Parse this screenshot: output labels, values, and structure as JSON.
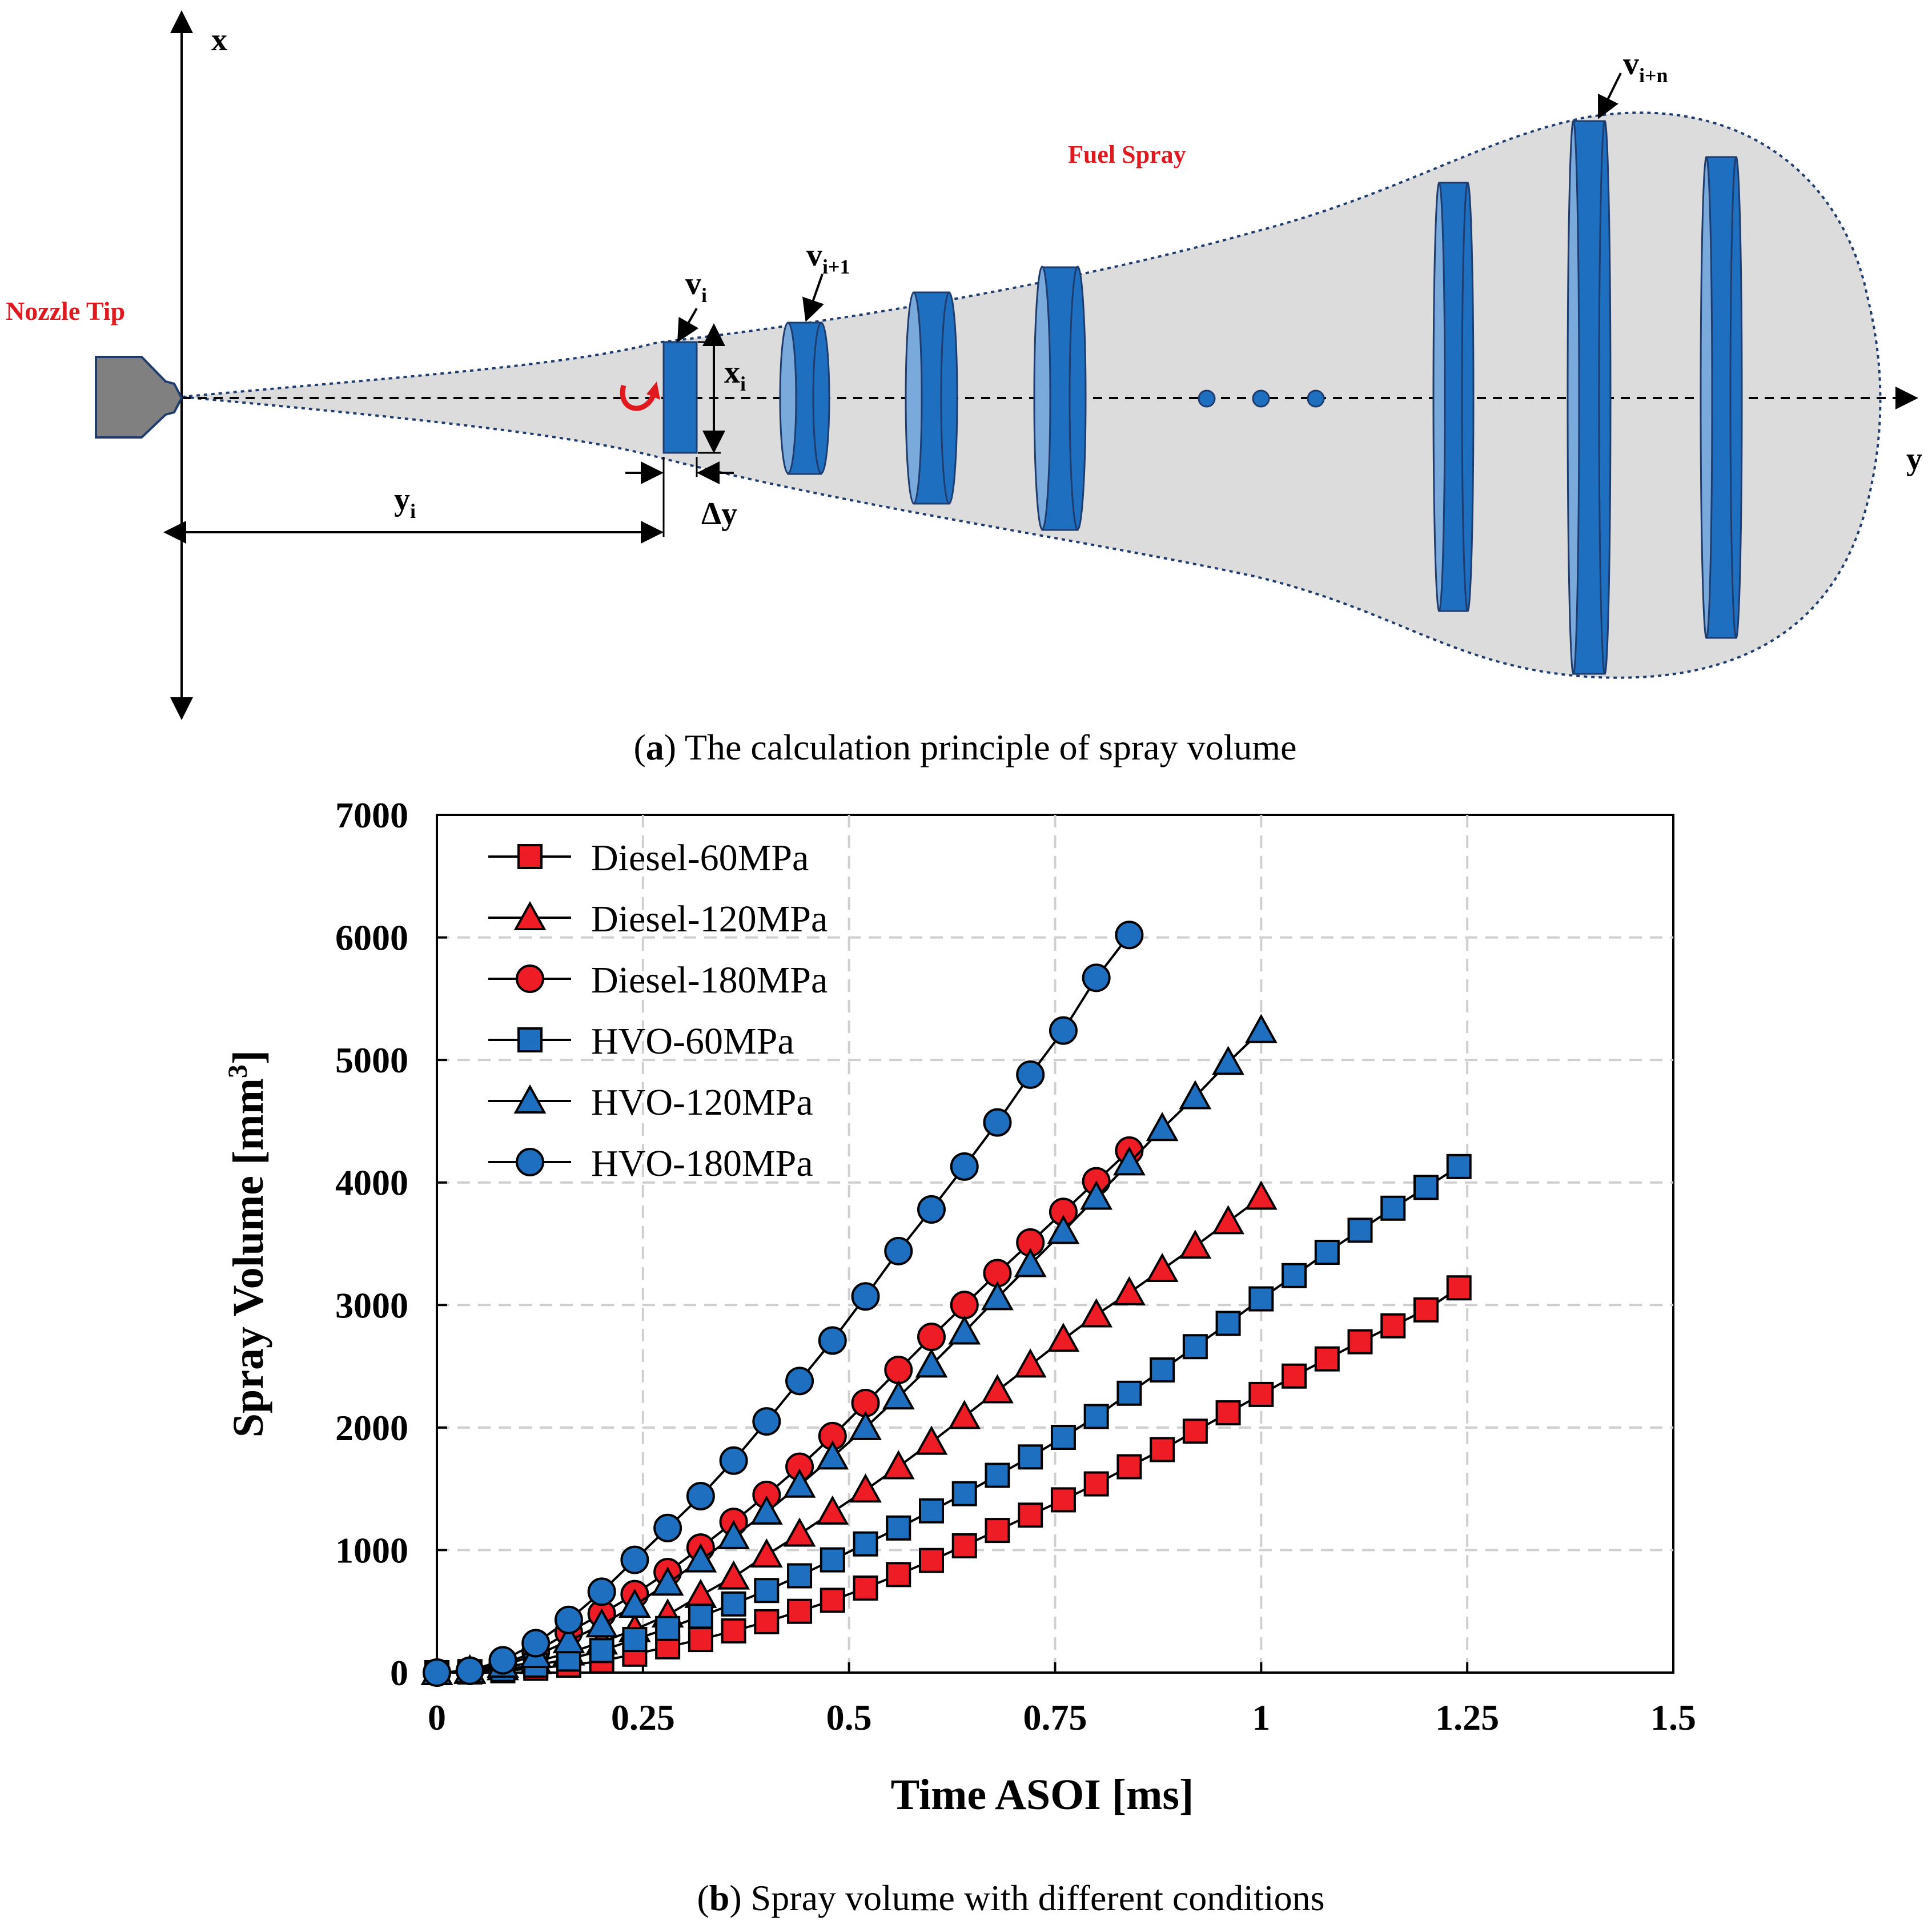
{
  "figure": {
    "panel_a": {
      "caption_letter": "a",
      "caption_text": " The calculation principle of spray volume",
      "labels": {
        "x_axis": "x",
        "y_axis": "y",
        "nozzle_tip": "Nozzle Tip",
        "fuel_spray": "Fuel Spray",
        "v_i": {
          "base": "v",
          "sub": "i"
        },
        "v_i1": {
          "base": "v",
          "sub": "i+1"
        },
        "v_in": {
          "base": "v",
          "sub": "i+n"
        },
        "x_i": {
          "base": "x",
          "sub": "i"
        },
        "y_i": {
          "base": "y",
          "sub": "i"
        },
        "delta_y": "Δy"
      },
      "colors": {
        "spray_fill": "#dcdcdc",
        "disc_fill": "#1f6fc0",
        "disc_edge": "#7aa9dc",
        "nozzle": "#7f7f7f",
        "label_red": "#e0191f"
      }
    },
    "panel_b": {
      "caption_letter": "b",
      "caption_text": " Spray volume with different conditions"
    }
  },
  "chart_data": {
    "type": "line",
    "title": "",
    "xlabel": "Time ASOI [ms]",
    "ylabel": {
      "text": "Spray Volume [mm",
      "sup": "3",
      "close": "]"
    },
    "xlim": [
      0,
      1.5
    ],
    "ylim": [
      0,
      7000
    ],
    "x_ticks": [
      0,
      0.25,
      0.5,
      0.75,
      1,
      1.25,
      1.5
    ],
    "x_tick_labels": [
      "0",
      "0.25",
      "0.5",
      "0.75",
      "1",
      "1.25",
      "1.5"
    ],
    "y_ticks": [
      0,
      1000,
      2000,
      3000,
      4000,
      5000,
      6000,
      7000
    ],
    "y_tick_labels": [
      "0",
      "1000",
      "2000",
      "3000",
      "4000",
      "5000",
      "6000",
      "7000"
    ],
    "grid": true,
    "legend_position": "top-left",
    "series": [
      {
        "name": "Diesel-60MPa",
        "marker": "square",
        "color": "#ee1c25",
        "x": [
          0,
          0.04,
          0.08,
          0.12,
          0.16,
          0.2,
          0.24,
          0.28,
          0.32,
          0.36,
          0.4,
          0.44,
          0.48,
          0.52,
          0.56,
          0.6,
          0.64,
          0.68,
          0.72,
          0.76,
          0.8,
          0.84,
          0.88,
          0.92,
          0.96,
          1.0,
          1.04,
          1.08,
          1.12,
          1.16,
          1.2,
          1.24
        ],
        "y": [
          0,
          5,
          15,
          35,
          60,
          95,
          150,
          210,
          270,
          340,
          415,
          500,
          590,
          690,
          800,
          915,
          1035,
          1160,
          1285,
          1410,
          1540,
          1680,
          1820,
          1970,
          2120,
          2270,
          2420,
          2560,
          2700,
          2830,
          2960,
          3140
        ]
      },
      {
        "name": "Diesel-120MPa",
        "marker": "triangle",
        "color": "#ee1c25",
        "x": [
          0,
          0.04,
          0.08,
          0.12,
          0.16,
          0.2,
          0.24,
          0.28,
          0.32,
          0.36,
          0.4,
          0.44,
          0.48,
          0.52,
          0.56,
          0.6,
          0.64,
          0.68,
          0.72,
          0.76,
          0.8,
          0.84,
          0.88,
          0.92,
          0.96,
          1.0
        ],
        "y": [
          0,
          10,
          40,
          90,
          160,
          250,
          350,
          470,
          630,
          780,
          960,
          1130,
          1310,
          1490,
          1680,
          1880,
          2090,
          2300,
          2510,
          2720,
          2920,
          3100,
          3290,
          3480,
          3680,
          3880
        ]
      },
      {
        "name": "Diesel-180MPa",
        "marker": "circle",
        "color": "#ee1c25",
        "x": [
          0,
          0.04,
          0.08,
          0.12,
          0.16,
          0.2,
          0.24,
          0.28,
          0.32,
          0.36,
          0.4,
          0.44,
          0.48,
          0.52,
          0.56,
          0.6,
          0.64,
          0.68,
          0.72,
          0.76,
          0.8,
          0.84
        ],
        "y": [
          0,
          15,
          70,
          170,
          330,
          480,
          640,
          820,
          1020,
          1230,
          1450,
          1680,
          1930,
          2200,
          2470,
          2740,
          3000,
          3260,
          3510,
          3760,
          4010,
          4260
        ]
      },
      {
        "name": "HVO-60MPa",
        "marker": "square",
        "color": "#1f6fc0",
        "x": [
          0,
          0.04,
          0.08,
          0.12,
          0.16,
          0.2,
          0.24,
          0.28,
          0.32,
          0.36,
          0.4,
          0.44,
          0.48,
          0.52,
          0.56,
          0.6,
          0.64,
          0.68,
          0.72,
          0.76,
          0.8,
          0.84,
          0.88,
          0.92,
          0.96,
          1.0,
          1.04,
          1.08,
          1.12,
          1.16,
          1.2,
          1.24
        ],
        "y": [
          0,
          8,
          25,
          60,
          110,
          180,
          270,
          360,
          460,
          560,
          670,
          790,
          920,
          1050,
          1180,
          1320,
          1460,
          1610,
          1760,
          1920,
          2090,
          2280,
          2470,
          2660,
          2850,
          3050,
          3240,
          3430,
          3610,
          3790,
          3960,
          4130
        ]
      },
      {
        "name": "HVO-120MPa",
        "marker": "triangle",
        "color": "#1f6fc0",
        "x": [
          0,
          0.04,
          0.08,
          0.12,
          0.16,
          0.2,
          0.24,
          0.28,
          0.32,
          0.36,
          0.4,
          0.44,
          0.48,
          0.52,
          0.56,
          0.6,
          0.64,
          0.68,
          0.72,
          0.76,
          0.8,
          0.84,
          0.88,
          0.92,
          0.96,
          1.0
        ],
        "y": [
          0,
          15,
          60,
          140,
          260,
          390,
          550,
          730,
          920,
          1110,
          1310,
          1530,
          1760,
          2000,
          2250,
          2510,
          2780,
          3060,
          3330,
          3600,
          3880,
          4160,
          4440,
          4700,
          4980,
          5240
        ]
      },
      {
        "name": "HVO-180MPa",
        "marker": "circle",
        "color": "#1f6fc0",
        "x": [
          0,
          0.04,
          0.08,
          0.12,
          0.16,
          0.2,
          0.24,
          0.28,
          0.32,
          0.36,
          0.4,
          0.44,
          0.48,
          0.52,
          0.56,
          0.6,
          0.64,
          0.68,
          0.72,
          0.76,
          0.8,
          0.84
        ],
        "y": [
          0,
          15,
          100,
          240,
          430,
          660,
          920,
          1180,
          1440,
          1730,
          2050,
          2380,
          2710,
          3070,
          3440,
          3780,
          4130,
          4490,
          4880,
          5240,
          5670,
          6020
        ]
      }
    ]
  }
}
